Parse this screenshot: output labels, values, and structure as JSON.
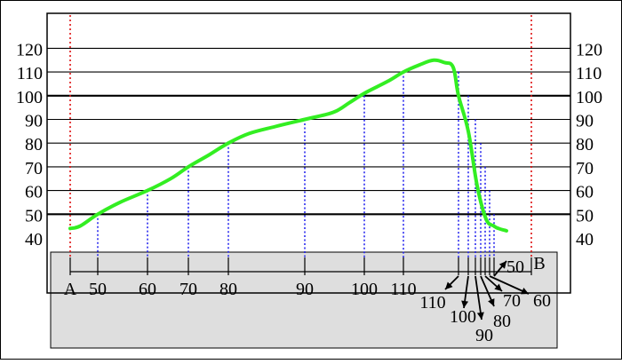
{
  "profile": {
    "left_end_label": "A",
    "right_end_label": "B",
    "left_axis_ticks": [
      "40",
      "50",
      "60",
      "70",
      "80",
      "90",
      "100",
      "110",
      "120"
    ],
    "right_axis_ticks": [
      "40",
      "50",
      "60",
      "70",
      "80",
      "90",
      "100",
      "110",
      "120"
    ],
    "bold_gridline_values": [
      50,
      100
    ],
    "contour_lines_left_to_right": [
      {
        "value": 50,
        "label": "50"
      },
      {
        "value": 60,
        "label": "60"
      },
      {
        "value": 70,
        "label": "70"
      },
      {
        "value": 80,
        "label": "80"
      },
      {
        "value": 90,
        "label": "90"
      },
      {
        "value": 100,
        "label": "100"
      },
      {
        "value": 110,
        "label": "110"
      }
    ],
    "contour_lines_right_to_left": [
      {
        "value": 110,
        "label": "110"
      },
      {
        "value": 100,
        "label": "100"
      },
      {
        "value": 90,
        "label": "90"
      },
      {
        "value": 80,
        "label": "80"
      },
      {
        "value": 70,
        "label": "70"
      },
      {
        "value": 60,
        "label": "60"
      },
      {
        "value": 50,
        "label": "50"
      }
    ],
    "profile_elevations": [
      44,
      45,
      50,
      55,
      60,
      65,
      70,
      75,
      80,
      84,
      87,
      90,
      93,
      97,
      101,
      106,
      110,
      113,
      115,
      114,
      112,
      100,
      85,
      62,
      48,
      45,
      44,
      43
    ],
    "colors": {
      "profile_line": "#33ee22",
      "end_marker": "#dd1111",
      "drop_line": "#1a1aee",
      "strip_fill": "#dedede",
      "grid": "#000000"
    }
  }
}
